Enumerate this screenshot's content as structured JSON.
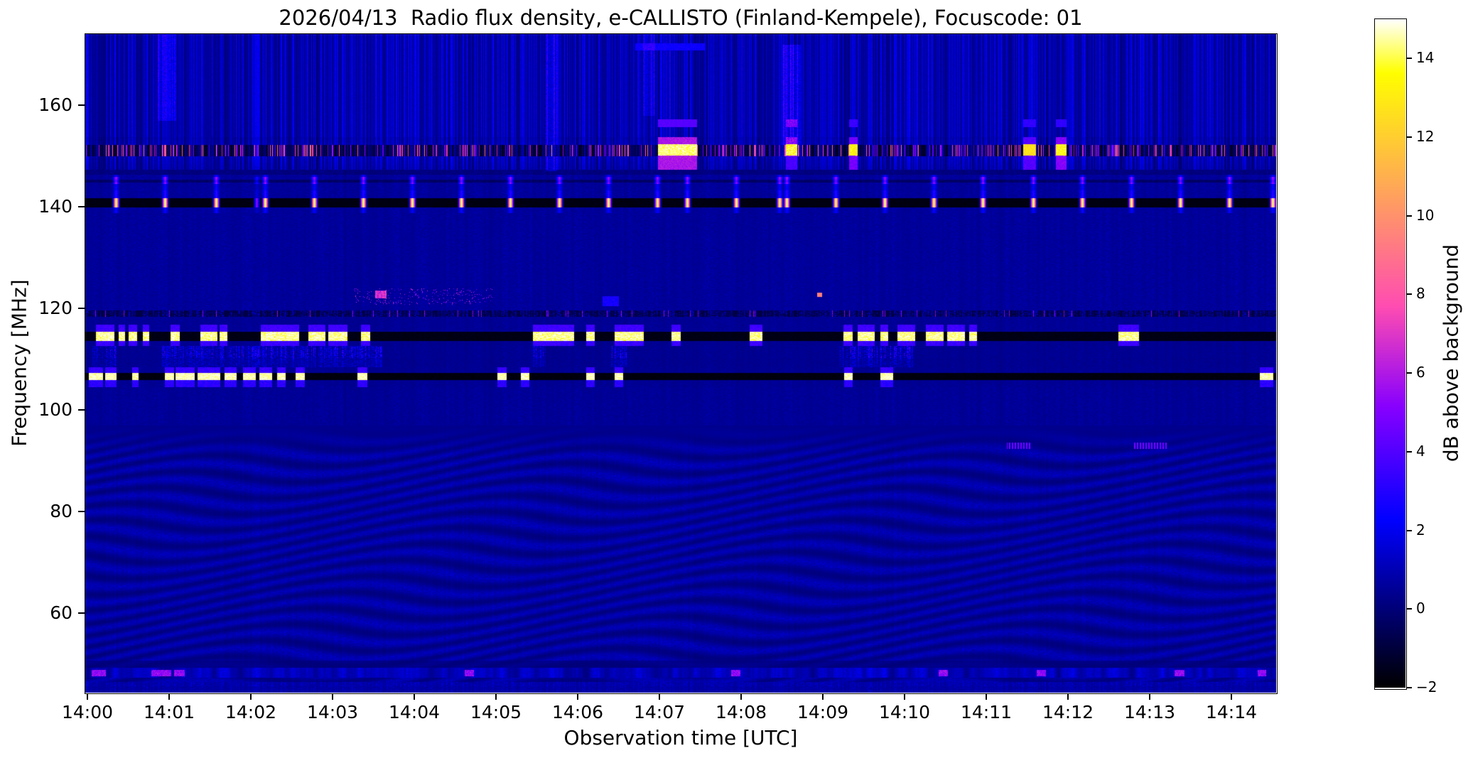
{
  "chart_data": {
    "type": "heatmap",
    "subtype": "radio-spectrogram",
    "title": "2026/04/13  Radio flux density, e-CALLISTO (Finland-Kempele), Focuscode: 01",
    "xlabel": "Observation time [UTC]",
    "ylabel": "Frequency [MHz]",
    "x_ticks": [
      "14:00",
      "14:01",
      "14:02",
      "14:03",
      "14:04",
      "14:05",
      "14:06",
      "14:07",
      "14:08",
      "14:09",
      "14:10",
      "14:11",
      "14:12",
      "14:13",
      "14:14"
    ],
    "x_start_minute": 0,
    "x_end_minute": 14.57,
    "y_ticks_mhz": [
      160,
      140,
      120,
      100,
      80,
      60
    ],
    "freq_range_mhz": [
      44.3,
      174.0
    ],
    "grid": false,
    "colorbar": {
      "label": "dB above background",
      "ticks": [
        14,
        12,
        10,
        8,
        6,
        4,
        2,
        0,
        -2
      ],
      "vmin": -2,
      "vmax": 15,
      "colormap": "gnuplot2"
    },
    "features": {
      "band171": {
        "freq": [
          170.8,
          172.2
        ],
        "segments": [
          [
            6.7,
            7.55
          ]
        ]
      },
      "band156": {
        "freq": [
          155.7,
          157.3
        ],
        "segments": [
          [
            6.98,
            7.45,
            3.8
          ],
          [
            8.55,
            8.68,
            3.2
          ],
          [
            9.32,
            9.42,
            3.2
          ],
          [
            11.45,
            11.6,
            3.0
          ],
          [
            11.85,
            11.97,
            3.0
          ]
        ]
      },
      "band150": {
        "freq": [
          147.3,
          153.8
        ],
        "pink_freq": [
          150.0,
          152.3
        ],
        "bright": [
          [
            6.98,
            7.45,
            14.6
          ],
          [
            8.55,
            8.68,
            12.5
          ],
          [
            9.32,
            9.42,
            13.5
          ],
          [
            11.45,
            11.6,
            12.8
          ],
          [
            11.85,
            11.97,
            13.8
          ]
        ]
      },
      "band141": {
        "freq": [
          139.95,
          141.75
        ],
        "line_db": -1.9,
        "burst_db": 15,
        "marker_freq": 145.3,
        "bursts": [
          0.35,
          0.95,
          1.57,
          2.17,
          2.77,
          3.37,
          3.97,
          4.57,
          5.17,
          5.77,
          6.37,
          6.97,
          7.34,
          7.94,
          8.47,
          8.56,
          9.16,
          9.76,
          10.36,
          10.96,
          11.57,
          12.17,
          12.77,
          13.37,
          13.97,
          14.5
        ],
        "dim_bursts": [
          2.07
        ]
      },
      "band119": {
        "freq": [
          118.4,
          119.6
        ]
      },
      "speckle122": {
        "freq": [
          120.8,
          124.0
        ],
        "window": [
          3.25,
          4.95
        ],
        "blob": [
          3.52,
          3.66,
          122.0,
          123.5
        ]
      },
      "dot122_orange": [
        8.93,
        8.99,
        122.3,
        123.2,
        9.0
      ],
      "patch121_blue": [
        6.3,
        6.5,
        120.5,
        122.5,
        2.3
      ],
      "band114": {
        "freq": [
          113.6,
          115.4
        ],
        "line_db": -1.9,
        "seg_db": 13.8,
        "segments": [
          [
            0.1,
            0.32
          ],
          [
            0.38,
            0.45
          ],
          [
            0.5,
            0.6
          ],
          [
            0.68,
            0.75
          ],
          [
            1.02,
            1.12
          ],
          [
            1.38,
            1.58
          ],
          [
            1.62,
            1.7
          ],
          [
            2.12,
            2.58
          ],
          [
            2.7,
            2.9
          ],
          [
            2.95,
            3.17
          ],
          [
            3.35,
            3.45
          ],
          [
            5.45,
            5.95
          ],
          [
            6.1,
            6.2
          ],
          [
            6.45,
            6.8
          ],
          [
            7.15,
            7.25
          ],
          [
            8.1,
            8.25
          ],
          [
            9.25,
            9.36
          ],
          [
            9.43,
            9.63
          ],
          [
            9.7,
            9.79
          ],
          [
            9.91,
            10.12
          ],
          [
            10.26,
            10.47
          ],
          [
            10.52,
            10.73
          ],
          [
            10.79,
            10.88
          ],
          [
            12.62,
            12.86
          ]
        ]
      },
      "band111": {
        "freq": [
          110.2,
          112.6
        ],
        "segments": [
          [
            0.05,
            0.35
          ],
          [
            0.9,
            3.6
          ],
          [
            5.45,
            5.6
          ],
          [
            6.4,
            6.6
          ],
          [
            9.2,
            10.1
          ]
        ]
      },
      "band106": {
        "freq": [
          105.95,
          107.35
        ],
        "line_db": -1.9,
        "seg_db": 14.2,
        "segments": [
          [
            0.02,
            0.18
          ],
          [
            0.22,
            0.35
          ],
          [
            0.55,
            0.62
          ],
          [
            0.95,
            1.05
          ],
          [
            1.08,
            1.3
          ],
          [
            1.35,
            1.62
          ],
          [
            1.68,
            1.82
          ],
          [
            1.9,
            2.05
          ],
          [
            2.1,
            2.25
          ],
          [
            2.32,
            2.42
          ],
          [
            2.55,
            2.65
          ],
          [
            3.3,
            3.42
          ],
          [
            5.02,
            5.12
          ],
          [
            5.3,
            5.4
          ],
          [
            6.1,
            6.2
          ],
          [
            6.45,
            6.55
          ],
          [
            9.26,
            9.36
          ],
          [
            9.7,
            9.85
          ],
          [
            14.35,
            14.5
          ]
        ]
      },
      "dots93": {
        "freq": [
          92.4,
          93.6
        ],
        "segments": [
          [
            11.25,
            11.55
          ],
          [
            12.8,
            13.2
          ]
        ]
      },
      "band48": {
        "freq": [
          47.3,
          49.3
        ],
        "pink_segments": [
          [
            0.05,
            0.22
          ],
          [
            0.78,
            1.02
          ],
          [
            1.06,
            1.18
          ],
          [
            4.62,
            4.72
          ],
          [
            7.88,
            7.98
          ],
          [
            10.42,
            10.52
          ],
          [
            11.62,
            11.72
          ],
          [
            13.3,
            13.42
          ],
          [
            14.32,
            14.42
          ]
        ]
      },
      "column_smears": [
        [
          0.86,
          1.08,
          157,
          174,
          1.2
        ],
        [
          5.6,
          5.74,
          147,
          174,
          1.0
        ],
        [
          6.8,
          6.94,
          158,
          174,
          0.8
        ],
        [
          8.5,
          8.72,
          150,
          172,
          1.4
        ]
      ],
      "wavy_texture": {
        "freq_below": 97,
        "desc": "diagonal interference ripple pattern"
      }
    }
  }
}
